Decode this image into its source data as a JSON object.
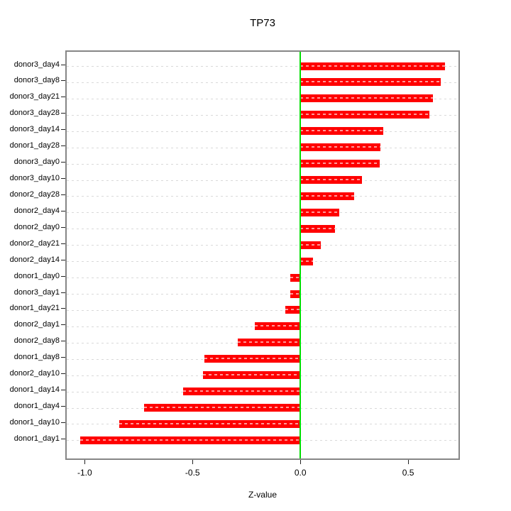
{
  "chart_data": {
    "type": "bar",
    "orientation": "horizontal",
    "title": "TP73",
    "xlabel": "Z-value",
    "ylabel": "",
    "categories": [
      "donor3_day4",
      "donor3_day8",
      "donor3_day21",
      "donor3_day28",
      "donor3_day14",
      "donor1_day28",
      "donor3_day0",
      "donor3_day10",
      "donor2_day28",
      "donor2_day4",
      "donor2_day0",
      "donor2_day21",
      "donor2_day14",
      "donor1_day0",
      "donor3_day1",
      "donor1_day21",
      "donor2_day1",
      "donor2_day8",
      "donor1_day8",
      "donor2_day10",
      "donor1_day14",
      "donor1_day4",
      "donor1_day10",
      "donor1_day1"
    ],
    "values": [
      0.67,
      0.65,
      0.615,
      0.6,
      0.385,
      0.37,
      0.368,
      0.285,
      0.25,
      0.18,
      0.16,
      0.095,
      0.06,
      -0.045,
      -0.048,
      -0.07,
      -0.21,
      -0.29,
      -0.445,
      -0.45,
      -0.545,
      -0.725,
      -0.84,
      -1.02
    ],
    "xlim": [
      -1.09,
      0.74
    ],
    "xticks": {
      "values": [
        -1.0,
        -0.5,
        0.0,
        0.5
      ],
      "labels": [
        "-1.0",
        "-0.5",
        "0.0",
        "0.5"
      ]
    },
    "zero_line_at": 0,
    "grid": "horizontal dotted line per category",
    "legend": "none",
    "colors": {
      "bar": "#ff0000",
      "zero_line": "#00dd00",
      "grid": "#d9d9d9",
      "box": "#868686",
      "text": "#000000"
    }
  }
}
